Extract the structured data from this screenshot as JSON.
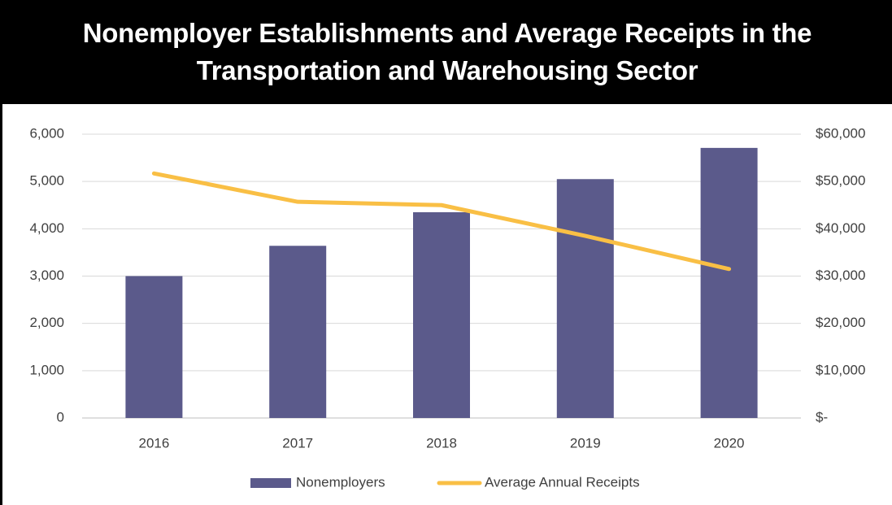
{
  "chart_data": {
    "type": "bar_line",
    "title": "Nonemployer Establishments and Average Receipts in the Transportation and Warehousing Sector",
    "categories": [
      "2016",
      "2017",
      "2018",
      "2019",
      "2020"
    ],
    "series": [
      {
        "name": "Nonemployers",
        "type": "bar",
        "color": "#5b5a8b",
        "values": [
          3000,
          3640,
          4350,
          5050,
          5710
        ]
      },
      {
        "name": "Average Annual Receipts",
        "type": "line",
        "axis": "y2",
        "color": "#f9bf45",
        "values": [
          51700,
          45700,
          45000,
          38500,
          31500
        ]
      }
    ],
    "ylim": [
      0,
      6000
    ],
    "yticks": [
      0,
      {
        "value": 1000,
        "label": "1,000"
      },
      {
        "value": 2000,
        "label": "2,000"
      },
      {
        "value": 3000,
        "label": "3,000"
      },
      {
        "value": 4000,
        "label": "4,000"
      },
      {
        "value": 5000,
        "label": "5,000"
      },
      {
        "value": 6000,
        "label": "6,000"
      }
    ],
    "y2lim": [
      0,
      60000
    ],
    "y2ticks": [
      {
        "value": 0,
        "label": "$-"
      },
      {
        "value": 10000,
        "label": "$10,000"
      },
      {
        "value": 20000,
        "label": "$20,000"
      },
      {
        "value": 30000,
        "label": "$30,000"
      },
      {
        "value": 40000,
        "label": "$40,000"
      },
      {
        "value": 50000,
        "label": "$50,000"
      },
      {
        "value": 60000,
        "label": "$60,000"
      }
    ],
    "grid": true,
    "legend": "bottom"
  }
}
